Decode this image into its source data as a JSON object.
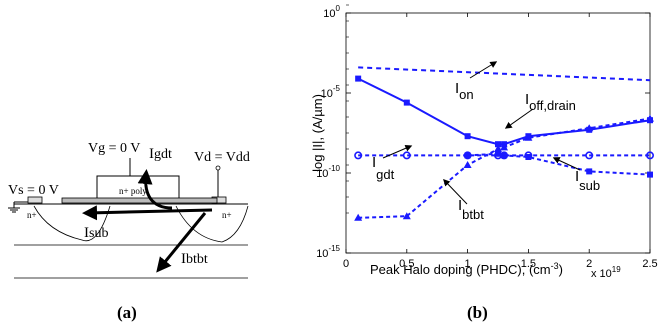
{
  "device": {
    "vs_label": "Vs = 0 V",
    "vg_label": "Vg = 0 V",
    "vd_label": "Vd = Vdd",
    "poly_label": "n+ poly",
    "source_label": "n+",
    "drain_label": "n+",
    "igdt_main": "I",
    "igdt_sub": "gdt",
    "isub_main": "I",
    "isub_sub": "sub",
    "ibtbt_main": "I",
    "ibtbt_sub": "btbt",
    "caption": "(a)"
  },
  "chart_data": {
    "type": "line",
    "caption": "(b)",
    "xlabel": "Peak Halo doping (PHDC), (cm",
    "xlabel_exp": "-3",
    "xlabel_tail": ")",
    "x_multiplier": "x 10",
    "x_multiplier_exp": "19",
    "ylabel": "log |I|, (A/µm)",
    "xlim": [
      0,
      2.5
    ],
    "ylim_log10": [
      -15,
      0
    ],
    "y_scale": "log",
    "xticks": [
      0,
      0.5,
      1,
      1.5,
      2,
      2.5
    ],
    "xtick_labels": [
      "0",
      "0.5",
      "1",
      "1.5",
      "2",
      "2.5"
    ],
    "yticks_log10": [
      -15,
      -10,
      -5,
      0
    ],
    "ytick_base": "10",
    "ytick_exps": [
      "-15",
      "-10",
      "-5",
      "0"
    ],
    "series": [
      {
        "id": "ion",
        "marker": "none",
        "dash": "5,4",
        "x": [
          0.1,
          2.5
        ],
        "log10_y": [
          -3.4,
          -4.2
        ]
      },
      {
        "id": "ioff_drain",
        "marker": "square",
        "dash": "none",
        "x": [
          0.1,
          0.5,
          1.0,
          1.25,
          1.3,
          1.5,
          2.0,
          2.5
        ],
        "log10_y": [
          -4.1,
          -5.6,
          -7.7,
          -8.2,
          -8.2,
          -7.7,
          -7.3,
          -6.7
        ]
      },
      {
        "id": "igdt",
        "marker": "circle",
        "dash": "4,3",
        "x": [
          0.1,
          0.5,
          1.0,
          1.25,
          1.3,
          1.5,
          2.0,
          2.5
        ],
        "log10_y": [
          -8.9,
          -8.9,
          -8.9,
          -8.9,
          -8.9,
          -8.9,
          -8.9,
          -8.9
        ]
      },
      {
        "id": "isub",
        "marker": "square",
        "dash": "4,3",
        "x": [
          1.0,
          1.25,
          1.3,
          1.5,
          2.0,
          2.5
        ],
        "log10_y": [
          -8.9,
          -8.8,
          -8.9,
          -9.0,
          -9.9,
          -10.1
        ]
      },
      {
        "id": "ibtbt",
        "marker": "triangle",
        "dash": "4,3",
        "x": [
          0.1,
          0.5,
          1.0,
          1.25,
          1.3,
          1.5,
          2.0,
          2.5
        ],
        "log10_y": [
          -12.8,
          -12.7,
          -9.5,
          -8.5,
          -8.4,
          -7.8,
          -7.2,
          -6.6
        ]
      }
    ],
    "annotations": {
      "ion": {
        "main": "I",
        "sub": "on"
      },
      "ioff": {
        "main": "I",
        "sub": "off,drain"
      },
      "igdt": {
        "main": "I",
        "sub": "gdt"
      },
      "isub": {
        "main": "I",
        "sub": "sub"
      },
      "ibtbt": {
        "main": "I",
        "sub": "btbt"
      }
    }
  }
}
